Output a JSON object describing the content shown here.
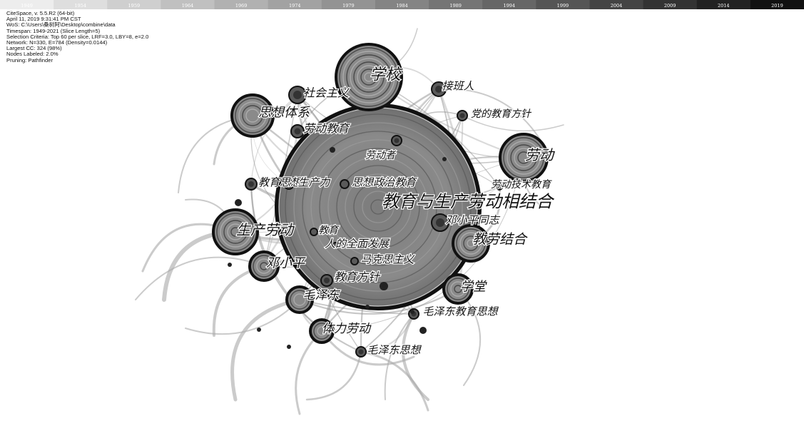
{
  "info": [
    "CiteSpace, v. 5.5.R2 (64-bit)",
    "April 11, 2019 9:31:41 PM CST",
    "WoS: C:\\Users\\桑树阿\\Desktop\\combine\\data",
    "Timespan: 1949-2021 (Slice Length=5)",
    "Selection Criteria: Top 60 per slice, LRF=3.0, LBY=8, e=2.0",
    "Network: N=330, E=784 (Density=0.0144)",
    "Largest CC: 324 (98%)",
    "Nodes Labeled: 2.0%",
    "Pruning: Pathfinder"
  ],
  "timeline": {
    "years": [
      "1949",
      "1954",
      "1959",
      "1964",
      "1969",
      "1974",
      "1979",
      "1984",
      "1989",
      "1994",
      "1999",
      "2004",
      "2009",
      "2014",
      "2019"
    ],
    "colors": [
      "#ededed",
      "#dedede",
      "#cfcfcf",
      "#c0c0c0",
      "#b1b1b1",
      "#a2a2a2",
      "#939393",
      "#848484",
      "#757575",
      "#666666",
      "#555555",
      "#444444",
      "#333333",
      "#222222",
      "#111111"
    ],
    "label_colors": [
      "#ffffff",
      "#ffffff",
      "#ffffff",
      "#ffffff",
      "#ffffff",
      "#ffffff",
      "#ffffff",
      "#ffffff",
      "#ffffff",
      "#ffffff",
      "#ffffff",
      "#ffffff",
      "#ffffff",
      "#ffffff",
      "#ffffff"
    ]
  },
  "network": {
    "nodes": [
      {
        "id": "教育与生产劳动相结合",
        "label": "教育与生产劳动相结合",
        "weight": 10
      },
      {
        "id": "学校",
        "label": "学校",
        "weight": 6
      },
      {
        "id": "劳动",
        "label": "劳动",
        "weight": 4
      },
      {
        "id": "思想体系",
        "label": "思想体系",
        "weight": 4
      },
      {
        "id": "生产劳动",
        "label": "生产劳动",
        "weight": 4.2
      },
      {
        "id": "教劳结合",
        "label": "教劳结合",
        "weight": 3.6
      },
      {
        "id": "邓小平",
        "label": "邓小平",
        "weight": 3.2
      },
      {
        "id": "学堂",
        "label": "学堂",
        "weight": 3.2
      },
      {
        "id": "毛泽东",
        "label": "毛泽东",
        "weight": 2.8
      },
      {
        "id": "体力劳动",
        "label": "体力劳动",
        "weight": 2.4
      },
      {
        "id": "社会主义",
        "label": "社会主义",
        "weight": 2
      },
      {
        "id": "接班人",
        "label": "接班人",
        "weight": 1.8
      },
      {
        "id": "劳动教育",
        "label": "劳动教育",
        "weight": 1.6
      },
      {
        "id": "邓小平同志",
        "label": "邓小平同志",
        "weight": 2
      },
      {
        "id": "党的教育方针",
        "label": "党的教育方针",
        "weight": 1.2
      },
      {
        "id": "劳动者",
        "label": "劳动者",
        "weight": 1.2
      },
      {
        "id": "劳动技术教育",
        "label": "劳动技术教育",
        "weight": 1
      },
      {
        "id": "教育思想",
        "label": "教育思想",
        "weight": 1.2
      },
      {
        "id": "生产力",
        "label": "生产力",
        "weight": 1.2
      },
      {
        "id": "思想政治教育",
        "label": "思想政治教育",
        "weight": 1.1
      },
      {
        "id": "教育",
        "label": "教育",
        "weight": 1
      },
      {
        "id": "人的全面发展",
        "label": "人的全面发展",
        "weight": 1
      },
      {
        "id": "马克思主义",
        "label": "马克思主义",
        "weight": 1
      },
      {
        "id": "教育方针",
        "label": "教育方针",
        "weight": 1.4
      },
      {
        "id": "毛泽东教育思想",
        "label": "毛泽东教育思想",
        "weight": 1.2
      },
      {
        "id": "毛泽东思想",
        "label": "毛泽东思想",
        "weight": 1.2
      }
    ]
  }
}
